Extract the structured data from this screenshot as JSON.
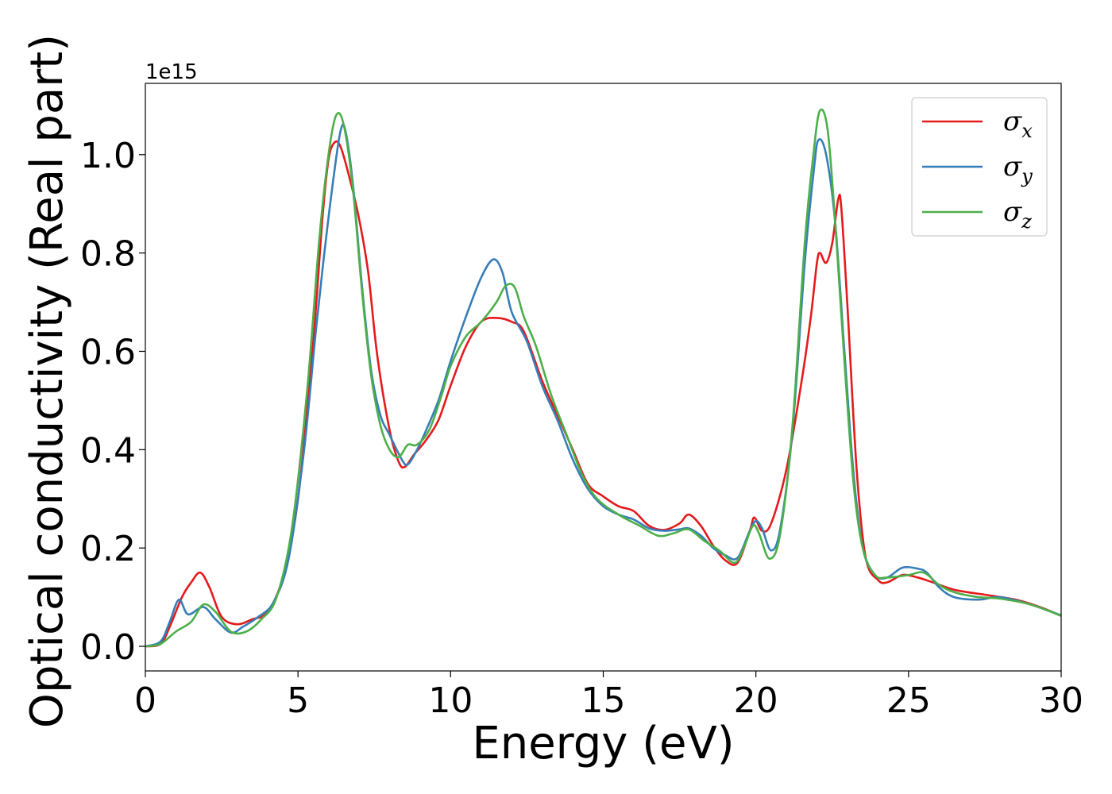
{
  "chart_data": {
    "type": "line",
    "title": "",
    "xlabel": "Energy (eV)",
    "ylabel": "Optical conductivity (Real part)",
    "y_offset_label": "1e15",
    "xlim": [
      0,
      30
    ],
    "ylim": [
      -0.05,
      1.145
    ],
    "x_ticks": [
      0,
      5,
      10,
      15,
      20,
      25,
      30
    ],
    "x_tick_labels": [
      "0",
      "5",
      "10",
      "15",
      "20",
      "25",
      "30"
    ],
    "y_ticks": [
      0.0,
      0.2,
      0.4,
      0.6,
      0.8,
      1.0
    ],
    "y_tick_labels": [
      "0.0",
      "0.2",
      "0.4",
      "0.6",
      "0.8",
      "1.0"
    ],
    "grid": false,
    "legend_position": "top-right",
    "series": [
      {
        "name": "σx",
        "symbol": "σ",
        "subscript": "x",
        "color": "#e41a1c",
        "points": [
          [
            0,
            0
          ],
          [
            0.5,
            0.005
          ],
          [
            0.8,
            0.04
          ],
          [
            1.2,
            0.1
          ],
          [
            1.5,
            0.13
          ],
          [
            1.8,
            0.15
          ],
          [
            2.1,
            0.12
          ],
          [
            2.5,
            0.06
          ],
          [
            3,
            0.045
          ],
          [
            3.5,
            0.055
          ],
          [
            4,
            0.07
          ],
          [
            4.5,
            0.14
          ],
          [
            5,
            0.3
          ],
          [
            5.5,
            0.62
          ],
          [
            5.8,
            0.87
          ],
          [
            6.0,
            0.99
          ],
          [
            6.2,
            1.025
          ],
          [
            6.4,
            1.015
          ],
          [
            6.7,
            0.95
          ],
          [
            7,
            0.87
          ],
          [
            7.3,
            0.76
          ],
          [
            7.6,
            0.59
          ],
          [
            8,
            0.44
          ],
          [
            8.3,
            0.375
          ],
          [
            8.5,
            0.365
          ],
          [
            8.8,
            0.39
          ],
          [
            9.2,
            0.42
          ],
          [
            9.6,
            0.46
          ],
          [
            10,
            0.53
          ],
          [
            10.5,
            0.61
          ],
          [
            11,
            0.66
          ],
          [
            11.5,
            0.668
          ],
          [
            12,
            0.66
          ],
          [
            12.4,
            0.64
          ],
          [
            13,
            0.54
          ],
          [
            13.5,
            0.47
          ],
          [
            14,
            0.4
          ],
          [
            14.5,
            0.33
          ],
          [
            15,
            0.305
          ],
          [
            15.5,
            0.285
          ],
          [
            16,
            0.275
          ],
          [
            16.5,
            0.245
          ],
          [
            17,
            0.237
          ],
          [
            17.5,
            0.25
          ],
          [
            17.8,
            0.268
          ],
          [
            18.2,
            0.245
          ],
          [
            18.6,
            0.205
          ],
          [
            19,
            0.175
          ],
          [
            19.4,
            0.17
          ],
          [
            19.8,
            0.235
          ],
          [
            19.95,
            0.262
          ],
          [
            20.2,
            0.235
          ],
          [
            20.5,
            0.25
          ],
          [
            21,
            0.36
          ],
          [
            21.5,
            0.54
          ],
          [
            21.8,
            0.67
          ],
          [
            22,
            0.78
          ],
          [
            22.1,
            0.8
          ],
          [
            22.3,
            0.78
          ],
          [
            22.5,
            0.82
          ],
          [
            22.7,
            0.91
          ],
          [
            22.8,
            0.89
          ],
          [
            23,
            0.69
          ],
          [
            23.3,
            0.36
          ],
          [
            23.6,
            0.18
          ],
          [
            24,
            0.135
          ],
          [
            24.3,
            0.13
          ],
          [
            24.8,
            0.145
          ],
          [
            25.3,
            0.14
          ],
          [
            25.8,
            0.13
          ],
          [
            26.5,
            0.115
          ],
          [
            27.5,
            0.105
          ],
          [
            28.5,
            0.095
          ],
          [
            29.3,
            0.08
          ],
          [
            30,
            0.062
          ]
        ]
      },
      {
        "name": "σy",
        "symbol": "σ",
        "subscript": "y",
        "color": "#377eb8",
        "points": [
          [
            0,
            0
          ],
          [
            0.5,
            0.01
          ],
          [
            0.8,
            0.05
          ],
          [
            1.1,
            0.095
          ],
          [
            1.4,
            0.065
          ],
          [
            1.9,
            0.08
          ],
          [
            2.3,
            0.055
          ],
          [
            2.8,
            0.028
          ],
          [
            3.2,
            0.04
          ],
          [
            3.7,
            0.06
          ],
          [
            4.2,
            0.09
          ],
          [
            4.7,
            0.18
          ],
          [
            5.2,
            0.4
          ],
          [
            5.6,
            0.65
          ],
          [
            5.9,
            0.82
          ],
          [
            6.2,
            0.97
          ],
          [
            6.4,
            1.05
          ],
          [
            6.55,
            1.05
          ],
          [
            6.8,
            0.94
          ],
          [
            7.1,
            0.73
          ],
          [
            7.4,
            0.56
          ],
          [
            7.7,
            0.47
          ],
          [
            8,
            0.43
          ],
          [
            8.4,
            0.38
          ],
          [
            8.6,
            0.37
          ],
          [
            8.9,
            0.4
          ],
          [
            9.2,
            0.44
          ],
          [
            9.6,
            0.5
          ],
          [
            10,
            0.58
          ],
          [
            10.5,
            0.67
          ],
          [
            11,
            0.75
          ],
          [
            11.4,
            0.787
          ],
          [
            11.7,
            0.76
          ],
          [
            12,
            0.68
          ],
          [
            12.5,
            0.62
          ],
          [
            13,
            0.53
          ],
          [
            13.5,
            0.46
          ],
          [
            14,
            0.38
          ],
          [
            14.5,
            0.32
          ],
          [
            15,
            0.285
          ],
          [
            15.5,
            0.268
          ],
          [
            16,
            0.258
          ],
          [
            16.5,
            0.24
          ],
          [
            17,
            0.235
          ],
          [
            17.5,
            0.238
          ],
          [
            17.8,
            0.24
          ],
          [
            18.2,
            0.225
          ],
          [
            18.6,
            0.2
          ],
          [
            19,
            0.185
          ],
          [
            19.4,
            0.18
          ],
          [
            19.8,
            0.235
          ],
          [
            20,
            0.255
          ],
          [
            20.2,
            0.24
          ],
          [
            20.5,
            0.195
          ],
          [
            20.8,
            0.24
          ],
          [
            21.2,
            0.44
          ],
          [
            21.6,
            0.78
          ],
          [
            21.9,
            0.97
          ],
          [
            22.05,
            1.03
          ],
          [
            22.3,
            1.0
          ],
          [
            22.6,
            0.86
          ],
          [
            22.9,
            0.6
          ],
          [
            23.2,
            0.35
          ],
          [
            23.5,
            0.2
          ],
          [
            23.9,
            0.145
          ],
          [
            24.3,
            0.14
          ],
          [
            24.8,
            0.16
          ],
          [
            25.3,
            0.158
          ],
          [
            25.6,
            0.15
          ],
          [
            26,
            0.12
          ],
          [
            26.5,
            0.1
          ],
          [
            27.3,
            0.095
          ],
          [
            28,
            0.1
          ],
          [
            29,
            0.085
          ],
          [
            30,
            0.063
          ]
        ]
      },
      {
        "name": "σz",
        "symbol": "σ",
        "subscript": "z",
        "color": "#4daf4a",
        "points": [
          [
            0,
            0
          ],
          [
            0.5,
            0.005
          ],
          [
            1,
            0.03
          ],
          [
            1.5,
            0.05
          ],
          [
            1.9,
            0.085
          ],
          [
            2.3,
            0.07
          ],
          [
            2.8,
            0.03
          ],
          [
            3.3,
            0.03
          ],
          [
            3.8,
            0.055
          ],
          [
            4.3,
            0.1
          ],
          [
            4.8,
            0.24
          ],
          [
            5.3,
            0.52
          ],
          [
            5.7,
            0.83
          ],
          [
            6.0,
            1.0
          ],
          [
            6.25,
            1.08
          ],
          [
            6.5,
            1.06
          ],
          [
            6.8,
            0.93
          ],
          [
            7.1,
            0.72
          ],
          [
            7.4,
            0.55
          ],
          [
            7.7,
            0.45
          ],
          [
            8,
            0.4
          ],
          [
            8.3,
            0.385
          ],
          [
            8.6,
            0.41
          ],
          [
            8.9,
            0.41
          ],
          [
            9.3,
            0.44
          ],
          [
            9.7,
            0.51
          ],
          [
            10,
            0.57
          ],
          [
            10.5,
            0.63
          ],
          [
            11,
            0.66
          ],
          [
            11.5,
            0.7
          ],
          [
            11.8,
            0.733
          ],
          [
            12.1,
            0.73
          ],
          [
            12.4,
            0.67
          ],
          [
            12.8,
            0.61
          ],
          [
            13.3,
            0.51
          ],
          [
            13.8,
            0.43
          ],
          [
            14.3,
            0.35
          ],
          [
            14.8,
            0.3
          ],
          [
            15.5,
            0.268
          ],
          [
            16.2,
            0.245
          ],
          [
            16.8,
            0.225
          ],
          [
            17.3,
            0.23
          ],
          [
            17.8,
            0.238
          ],
          [
            18.3,
            0.215
          ],
          [
            18.8,
            0.195
          ],
          [
            19.3,
            0.17
          ],
          [
            19.6,
            0.2
          ],
          [
            19.9,
            0.245
          ],
          [
            20.1,
            0.23
          ],
          [
            20.45,
            0.178
          ],
          [
            20.8,
            0.23
          ],
          [
            21.2,
            0.45
          ],
          [
            21.6,
            0.82
          ],
          [
            21.9,
            1.01
          ],
          [
            22.1,
            1.09
          ],
          [
            22.35,
            1.05
          ],
          [
            22.6,
            0.86
          ],
          [
            22.9,
            0.58
          ],
          [
            23.2,
            0.33
          ],
          [
            23.5,
            0.2
          ],
          [
            23.9,
            0.145
          ],
          [
            24.3,
            0.14
          ],
          [
            25,
            0.145
          ],
          [
            25.5,
            0.15
          ],
          [
            26,
            0.125
          ],
          [
            26.5,
            0.11
          ],
          [
            27.3,
            0.1
          ],
          [
            28,
            0.097
          ],
          [
            29,
            0.085
          ],
          [
            30,
            0.062
          ]
        ]
      }
    ]
  }
}
